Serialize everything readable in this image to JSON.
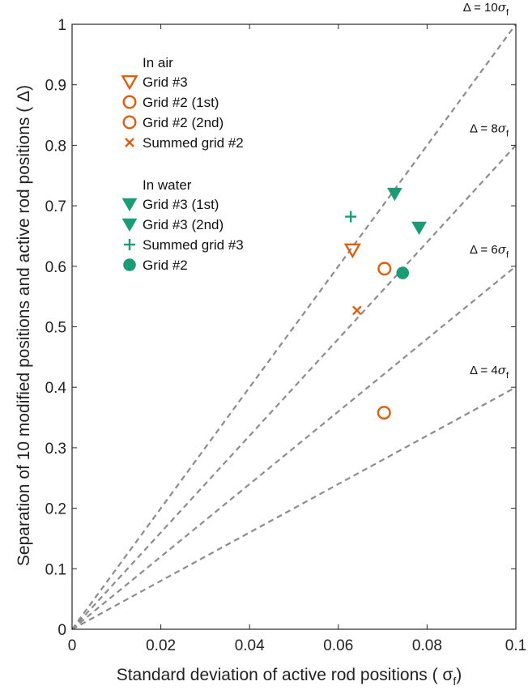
{
  "chart_data": {
    "type": "scatter",
    "xlabel": "Standard deviation of active rod positions ( σ",
    "xlabel_sub": "f",
    "xlabel_close": ")",
    "ylabel": "Separation of 10 modified positions and active rod positions ( Δ)",
    "xlim": [
      0,
      0.1
    ],
    "ylim": [
      0,
      1
    ],
    "x_ticks": [
      0,
      0.02,
      0.04,
      0.06,
      0.08,
      0.1
    ],
    "x_tick_labels": [
      "0",
      "0.02",
      "0.04",
      "0.06",
      "0.08",
      "0.1"
    ],
    "y_ticks": [
      0,
      0.1,
      0.2,
      0.3,
      0.4,
      0.5,
      0.6,
      0.7,
      0.8,
      0.9,
      1
    ],
    "y_tick_labels": [
      "0",
      "0.1",
      "0.2",
      "0.3",
      "0.4",
      "0.5",
      "0.6",
      "0.7",
      "0.8",
      "0.9",
      "1"
    ],
    "grid": false,
    "legend_placement": "top-left",
    "colors": {
      "air": "#D95F0E",
      "water": "#1A9C77",
      "reference": "#8C8C8C"
    },
    "legend_groups": [
      {
        "title": "In air",
        "entries": [
          {
            "label": "Grid #3",
            "marker": "triangle-down-open",
            "color": "air"
          },
          {
            "label": "Grid #2 (1st)",
            "marker": "circle-open",
            "color": "air"
          },
          {
            "label": "Grid #2 (2nd)",
            "marker": "circle-open",
            "color": "air"
          },
          {
            "label": "Summed grid #2",
            "marker": "x",
            "color": "air"
          }
        ]
      },
      {
        "title": "In water",
        "entries": [
          {
            "label": "Grid #3 (1st)",
            "marker": "triangle-down-filled",
            "color": "water"
          },
          {
            "label": "Grid #3 (2nd)",
            "marker": "triangle-down-filled",
            "color": "water"
          },
          {
            "label": "Summed grid #3",
            "marker": "plus",
            "color": "water"
          },
          {
            "label": "Grid #2",
            "marker": "circle-filled",
            "color": "water"
          }
        ]
      }
    ],
    "points": [
      {
        "series": "Grid #3 (air)",
        "x": 0.0632,
        "y": 0.627,
        "marker": "triangle-down-open",
        "color": "air"
      },
      {
        "series": "Grid #2 (1st) (air)",
        "x": 0.0704,
        "y": 0.596,
        "marker": "circle-open",
        "color": "air"
      },
      {
        "series": "Grid #2 (2nd) (air)",
        "x": 0.0703,
        "y": 0.358,
        "marker": "circle-open",
        "color": "air"
      },
      {
        "series": "Summed grid #2 (air)",
        "x": 0.0642,
        "y": 0.527,
        "marker": "x",
        "color": "air"
      },
      {
        "series": "Grid #3 (1st) (water)",
        "x": 0.0727,
        "y": 0.72,
        "marker": "triangle-down-filled",
        "color": "water"
      },
      {
        "series": "Grid #3 (2nd) (water)",
        "x": 0.0782,
        "y": 0.664,
        "marker": "triangle-down-filled",
        "color": "water"
      },
      {
        "series": "Summed grid #3 (water)",
        "x": 0.0628,
        "y": 0.682,
        "marker": "plus",
        "color": "water"
      },
      {
        "series": "Grid #2 (water)",
        "x": 0.0745,
        "y": 0.589,
        "marker": "circle-filled",
        "color": "water"
      }
    ],
    "reference_lines": [
      {
        "slope": 10,
        "label_prefix": "Δ = 10",
        "label_symbol": "σ",
        "label_sub": "f",
        "x_end": 0.1
      },
      {
        "slope": 8,
        "label_prefix": "Δ = 8",
        "label_symbol": "σ",
        "label_sub": "f",
        "x_end": 0.1
      },
      {
        "slope": 6,
        "label_prefix": "Δ = 6",
        "label_symbol": "σ",
        "label_sub": "f",
        "x_end": 0.1
      },
      {
        "slope": 4,
        "label_prefix": "Δ = 4",
        "label_symbol": "σ",
        "label_sub": "f",
        "x_end": 0.1
      }
    ]
  }
}
